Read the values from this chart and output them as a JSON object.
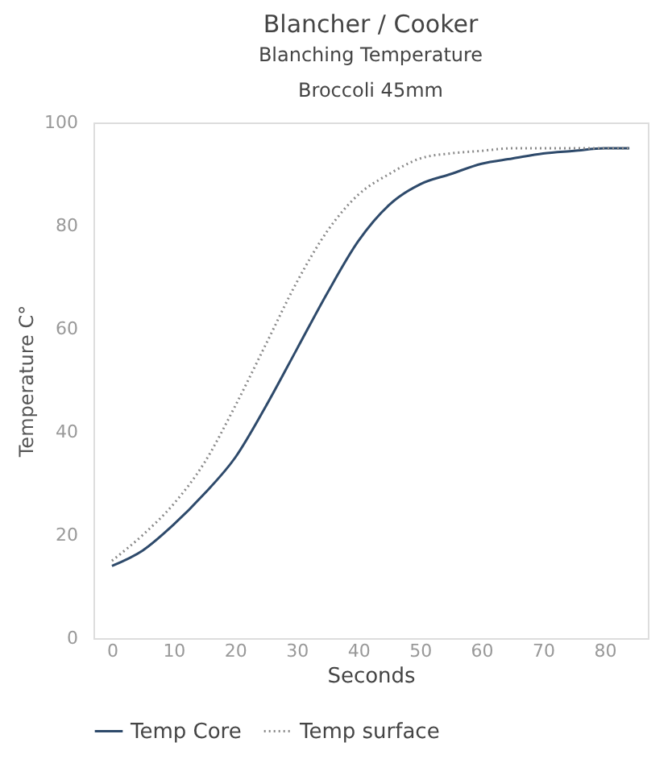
{
  "chart_data": {
    "type": "line",
    "title": "Blancher / Cooker",
    "subtitle": "Blanching Temperature",
    "annotations": [
      "Broccoli 45mm"
    ],
    "xlabel": "Seconds",
    "ylabel": "Temperature C°",
    "x": [
      0,
      5,
      10,
      15,
      20,
      25,
      30,
      35,
      40,
      45,
      50,
      55,
      60,
      65,
      70,
      75,
      80,
      84
    ],
    "series": [
      {
        "name": "Temp Core",
        "color": "#2e4a6b",
        "line_style": "solid",
        "values": [
          14,
          17,
          22,
          28,
          35,
          45,
          56,
          67,
          77,
          84,
          88,
          90,
          92,
          93,
          94,
          94.5,
          95,
          95
        ]
      },
      {
        "name": "Temp surface",
        "color": "#8a8a8a",
        "line_style": "dotted",
        "values": [
          15,
          20,
          26,
          34,
          45,
          57,
          69,
          79,
          86,
          90,
          93,
          94,
          94.5,
          95,
          95,
          95,
          95,
          95
        ]
      }
    ],
    "xlim": [
      -3,
      87
    ],
    "xticks": [
      0,
      10,
      20,
      30,
      40,
      50,
      60,
      70,
      80
    ],
    "ylim": [
      0,
      100
    ],
    "yticks": [
      0,
      20,
      40,
      60,
      80,
      100
    ],
    "grid": false,
    "legend": "bottom",
    "marker": "none"
  }
}
